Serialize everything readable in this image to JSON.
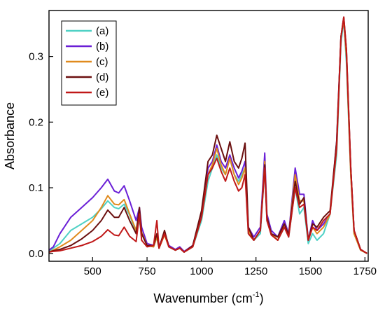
{
  "chart_data": {
    "type": "line",
    "xlabel": "Wavenumber (cm",
    "xlabel_sup": "-1",
    "xlabel_end": ")",
    "ylabel": "Absorbance",
    "xlim": [
      300,
      1765
    ],
    "ylim": [
      -0.012,
      0.37
    ],
    "xticks": [
      500,
      750,
      1000,
      1250,
      1500,
      1750
    ],
    "yticks": [
      0.0,
      0.1,
      0.2,
      0.3
    ],
    "ytick_labels": [
      "0.0",
      "0.1",
      "0.2",
      "0.3"
    ],
    "grid": false,
    "legend_position": "top-left",
    "series": [
      {
        "name": "(a)",
        "color": "#4fd1c5",
        "points": [
          [
            300,
            0.003
          ],
          [
            320,
            0.008
          ],
          [
            350,
            0.015
          ],
          [
            400,
            0.035
          ],
          [
            450,
            0.045
          ],
          [
            500,
            0.055
          ],
          [
            540,
            0.068
          ],
          [
            570,
            0.08
          ],
          [
            600,
            0.07
          ],
          [
            620,
            0.068
          ],
          [
            645,
            0.075
          ],
          [
            670,
            0.058
          ],
          [
            700,
            0.032
          ],
          [
            715,
            0.05
          ],
          [
            725,
            0.03
          ],
          [
            750,
            0.012
          ],
          [
            780,
            0.01
          ],
          [
            795,
            0.025
          ],
          [
            805,
            0.008
          ],
          [
            830,
            0.03
          ],
          [
            850,
            0.01
          ],
          [
            880,
            0.005
          ],
          [
            900,
            0.008
          ],
          [
            920,
            0.002
          ],
          [
            960,
            0.01
          ],
          [
            1000,
            0.05
          ],
          [
            1030,
            0.11
          ],
          [
            1050,
            0.13
          ],
          [
            1070,
            0.15
          ],
          [
            1090,
            0.13
          ],
          [
            1110,
            0.12
          ],
          [
            1130,
            0.145
          ],
          [
            1150,
            0.12
          ],
          [
            1170,
            0.11
          ],
          [
            1185,
            0.12
          ],
          [
            1200,
            0.13
          ],
          [
            1215,
            0.03
          ],
          [
            1240,
            0.02
          ],
          [
            1270,
            0.03
          ],
          [
            1290,
            0.13
          ],
          [
            1300,
            0.05
          ],
          [
            1320,
            0.03
          ],
          [
            1350,
            0.02
          ],
          [
            1380,
            0.04
          ],
          [
            1400,
            0.025
          ],
          [
            1430,
            0.1
          ],
          [
            1450,
            0.06
          ],
          [
            1470,
            0.07
          ],
          [
            1490,
            0.015
          ],
          [
            1510,
            0.03
          ],
          [
            1530,
            0.02
          ],
          [
            1560,
            0.03
          ],
          [
            1590,
            0.06
          ],
          [
            1620,
            0.15
          ],
          [
            1640,
            0.32
          ],
          [
            1653,
            0.355
          ],
          [
            1665,
            0.29
          ],
          [
            1685,
            0.12
          ],
          [
            1700,
            0.03
          ],
          [
            1730,
            0.005
          ],
          [
            1760,
            0.0
          ]
        ]
      },
      {
        "name": "(b)",
        "color": "#6a1fd6",
        "points": [
          [
            300,
            0.005
          ],
          [
            320,
            0.01
          ],
          [
            350,
            0.03
          ],
          [
            400,
            0.055
          ],
          [
            450,
            0.07
          ],
          [
            500,
            0.085
          ],
          [
            540,
            0.1
          ],
          [
            570,
            0.113
          ],
          [
            600,
            0.095
          ],
          [
            620,
            0.092
          ],
          [
            645,
            0.103
          ],
          [
            670,
            0.08
          ],
          [
            700,
            0.05
          ],
          [
            715,
            0.07
          ],
          [
            725,
            0.04
          ],
          [
            750,
            0.015
          ],
          [
            780,
            0.012
          ],
          [
            795,
            0.028
          ],
          [
            805,
            0.01
          ],
          [
            830,
            0.032
          ],
          [
            850,
            0.012
          ],
          [
            880,
            0.006
          ],
          [
            900,
            0.01
          ],
          [
            920,
            0.003
          ],
          [
            960,
            0.012
          ],
          [
            1000,
            0.06
          ],
          [
            1030,
            0.13
          ],
          [
            1050,
            0.14
          ],
          [
            1070,
            0.165
          ],
          [
            1090,
            0.14
          ],
          [
            1110,
            0.13
          ],
          [
            1130,
            0.15
          ],
          [
            1150,
            0.13
          ],
          [
            1170,
            0.115
          ],
          [
            1185,
            0.125
          ],
          [
            1200,
            0.14
          ],
          [
            1215,
            0.04
          ],
          [
            1240,
            0.025
          ],
          [
            1270,
            0.04
          ],
          [
            1290,
            0.153
          ],
          [
            1300,
            0.06
          ],
          [
            1320,
            0.035
          ],
          [
            1350,
            0.025
          ],
          [
            1380,
            0.05
          ],
          [
            1400,
            0.03
          ],
          [
            1430,
            0.13
          ],
          [
            1450,
            0.09
          ],
          [
            1470,
            0.09
          ],
          [
            1490,
            0.02
          ],
          [
            1510,
            0.05
          ],
          [
            1530,
            0.035
          ],
          [
            1560,
            0.045
          ],
          [
            1590,
            0.06
          ],
          [
            1620,
            0.17
          ],
          [
            1640,
            0.33
          ],
          [
            1653,
            0.355
          ],
          [
            1665,
            0.3
          ],
          [
            1685,
            0.13
          ],
          [
            1700,
            0.035
          ],
          [
            1730,
            0.006
          ],
          [
            1760,
            0.0
          ]
        ]
      },
      {
        "name": "(c)",
        "color": "#e08a1e",
        "points": [
          [
            300,
            0.002
          ],
          [
            320,
            0.005
          ],
          [
            350,
            0.01
          ],
          [
            400,
            0.02
          ],
          [
            450,
            0.035
          ],
          [
            500,
            0.05
          ],
          [
            540,
            0.07
          ],
          [
            570,
            0.088
          ],
          [
            600,
            0.075
          ],
          [
            620,
            0.074
          ],
          [
            645,
            0.082
          ],
          [
            670,
            0.06
          ],
          [
            700,
            0.035
          ],
          [
            715,
            0.065
          ],
          [
            725,
            0.032
          ],
          [
            750,
            0.012
          ],
          [
            780,
            0.01
          ],
          [
            795,
            0.025
          ],
          [
            805,
            0.008
          ],
          [
            830,
            0.028
          ],
          [
            850,
            0.01
          ],
          [
            880,
            0.005
          ],
          [
            900,
            0.008
          ],
          [
            920,
            0.002
          ],
          [
            960,
            0.01
          ],
          [
            1000,
            0.055
          ],
          [
            1030,
            0.12
          ],
          [
            1050,
            0.135
          ],
          [
            1070,
            0.16
          ],
          [
            1090,
            0.135
          ],
          [
            1110,
            0.12
          ],
          [
            1130,
            0.145
          ],
          [
            1150,
            0.12
          ],
          [
            1170,
            0.105
          ],
          [
            1185,
            0.115
          ],
          [
            1200,
            0.13
          ],
          [
            1215,
            0.035
          ],
          [
            1240,
            0.02
          ],
          [
            1270,
            0.035
          ],
          [
            1290,
            0.14
          ],
          [
            1300,
            0.055
          ],
          [
            1320,
            0.03
          ],
          [
            1350,
            0.02
          ],
          [
            1380,
            0.045
          ],
          [
            1400,
            0.028
          ],
          [
            1430,
            0.12
          ],
          [
            1450,
            0.08
          ],
          [
            1470,
            0.08
          ],
          [
            1490,
            0.02
          ],
          [
            1510,
            0.04
          ],
          [
            1530,
            0.03
          ],
          [
            1560,
            0.04
          ],
          [
            1590,
            0.06
          ],
          [
            1620,
            0.16
          ],
          [
            1640,
            0.33
          ],
          [
            1653,
            0.355
          ],
          [
            1665,
            0.3
          ],
          [
            1685,
            0.12
          ],
          [
            1700,
            0.03
          ],
          [
            1730,
            0.005
          ],
          [
            1760,
            0.0
          ]
        ]
      },
      {
        "name": "(d)",
        "color": "#6b0f0f",
        "points": [
          [
            300,
            0.002
          ],
          [
            320,
            0.004
          ],
          [
            350,
            0.006
          ],
          [
            400,
            0.012
          ],
          [
            450,
            0.022
          ],
          [
            500,
            0.035
          ],
          [
            540,
            0.05
          ],
          [
            570,
            0.066
          ],
          [
            600,
            0.055
          ],
          [
            620,
            0.055
          ],
          [
            645,
            0.07
          ],
          [
            670,
            0.05
          ],
          [
            700,
            0.03
          ],
          [
            715,
            0.07
          ],
          [
            725,
            0.03
          ],
          [
            750,
            0.012
          ],
          [
            780,
            0.012
          ],
          [
            795,
            0.03
          ],
          [
            805,
            0.008
          ],
          [
            830,
            0.035
          ],
          [
            850,
            0.01
          ],
          [
            880,
            0.005
          ],
          [
            900,
            0.008
          ],
          [
            920,
            0.002
          ],
          [
            960,
            0.012
          ],
          [
            1000,
            0.065
          ],
          [
            1030,
            0.14
          ],
          [
            1050,
            0.15
          ],
          [
            1070,
            0.18
          ],
          [
            1090,
            0.16
          ],
          [
            1110,
            0.14
          ],
          [
            1130,
            0.17
          ],
          [
            1150,
            0.14
          ],
          [
            1170,
            0.13
          ],
          [
            1185,
            0.145
          ],
          [
            1200,
            0.168
          ],
          [
            1215,
            0.04
          ],
          [
            1240,
            0.02
          ],
          [
            1270,
            0.035
          ],
          [
            1290,
            0.135
          ],
          [
            1300,
            0.055
          ],
          [
            1320,
            0.03
          ],
          [
            1350,
            0.025
          ],
          [
            1380,
            0.045
          ],
          [
            1400,
            0.028
          ],
          [
            1430,
            0.11
          ],
          [
            1450,
            0.075
          ],
          [
            1470,
            0.085
          ],
          [
            1490,
            0.02
          ],
          [
            1510,
            0.045
          ],
          [
            1530,
            0.04
          ],
          [
            1560,
            0.055
          ],
          [
            1590,
            0.065
          ],
          [
            1620,
            0.17
          ],
          [
            1640,
            0.33
          ],
          [
            1653,
            0.36
          ],
          [
            1665,
            0.31
          ],
          [
            1685,
            0.13
          ],
          [
            1700,
            0.035
          ],
          [
            1730,
            0.006
          ],
          [
            1760,
            0.0
          ]
        ]
      },
      {
        "name": "(e)",
        "color": "#c01818",
        "points": [
          [
            300,
            0.002
          ],
          [
            320,
            0.003
          ],
          [
            350,
            0.004
          ],
          [
            400,
            0.008
          ],
          [
            450,
            0.012
          ],
          [
            500,
            0.018
          ],
          [
            540,
            0.026
          ],
          [
            570,
            0.036
          ],
          [
            600,
            0.028
          ],
          [
            620,
            0.027
          ],
          [
            645,
            0.04
          ],
          [
            670,
            0.026
          ],
          [
            700,
            0.018
          ],
          [
            715,
            0.06
          ],
          [
            725,
            0.02
          ],
          [
            750,
            0.01
          ],
          [
            780,
            0.012
          ],
          [
            795,
            0.05
          ],
          [
            805,
            0.008
          ],
          [
            830,
            0.03
          ],
          [
            850,
            0.01
          ],
          [
            880,
            0.005
          ],
          [
            900,
            0.008
          ],
          [
            920,
            0.002
          ],
          [
            960,
            0.01
          ],
          [
            1000,
            0.055
          ],
          [
            1030,
            0.12
          ],
          [
            1050,
            0.13
          ],
          [
            1070,
            0.145
          ],
          [
            1090,
            0.125
          ],
          [
            1110,
            0.11
          ],
          [
            1130,
            0.13
          ],
          [
            1150,
            0.11
          ],
          [
            1170,
            0.095
          ],
          [
            1185,
            0.1
          ],
          [
            1200,
            0.12
          ],
          [
            1215,
            0.03
          ],
          [
            1240,
            0.02
          ],
          [
            1270,
            0.035
          ],
          [
            1290,
            0.13
          ],
          [
            1300,
            0.05
          ],
          [
            1320,
            0.028
          ],
          [
            1350,
            0.02
          ],
          [
            1380,
            0.04
          ],
          [
            1400,
            0.025
          ],
          [
            1430,
            0.1
          ],
          [
            1450,
            0.07
          ],
          [
            1470,
            0.075
          ],
          [
            1490,
            0.02
          ],
          [
            1510,
            0.04
          ],
          [
            1530,
            0.035
          ],
          [
            1560,
            0.05
          ],
          [
            1590,
            0.06
          ],
          [
            1620,
            0.16
          ],
          [
            1640,
            0.33
          ],
          [
            1653,
            0.36
          ],
          [
            1665,
            0.31
          ],
          [
            1685,
            0.13
          ],
          [
            1700,
            0.035
          ],
          [
            1730,
            0.006
          ],
          [
            1760,
            0.0
          ]
        ]
      }
    ]
  }
}
